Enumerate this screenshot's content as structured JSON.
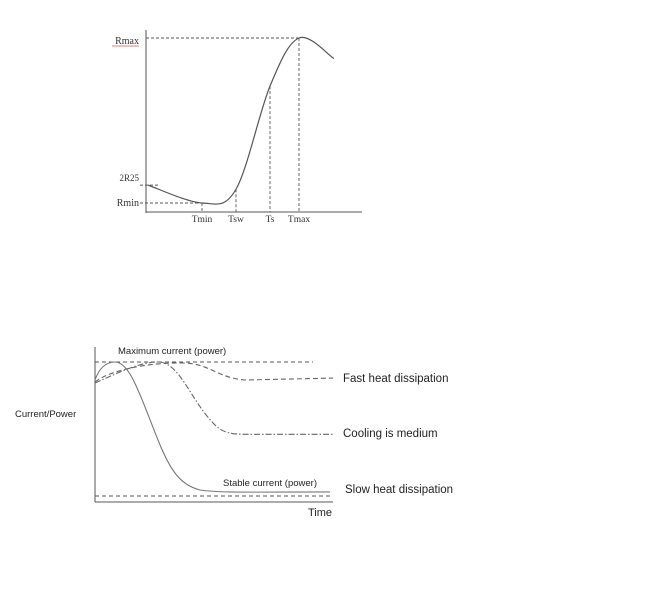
{
  "chart_data": [
    {
      "type": "line",
      "title": "",
      "xlabel": "",
      "ylabel": "",
      "x_ticks": [
        "Tmin",
        "Tsw",
        "Ts",
        "Tmax"
      ],
      "y_ticks": [
        "Rmax",
        "2R25",
        "Rmin"
      ],
      "series": [
        {
          "points": [
            {
              "t": "start",
              "r": 2.3
            },
            {
              "t": "Tmin",
              "r": 1.0
            },
            {
              "t": "Tsw",
              "r": 2.0
            },
            {
              "t": "Ts",
              "r": 9.5
            },
            {
              "t": "Tmax",
              "r": 13.0
            },
            {
              "t": "end",
              "r": 11.5
            }
          ]
        }
      ],
      "grid": false
    },
    {
      "type": "line",
      "title": "",
      "xlabel": "Time",
      "ylabel": "Current/Power",
      "reference_lines": [
        {
          "label": "Maximum current (power)",
          "level": 1.0
        },
        {
          "label": "Stable current (power)",
          "level": 0.0
        }
      ],
      "series": [
        {
          "name": "Fast heat dissipation",
          "style": "dashed",
          "final_level": 0.88
        },
        {
          "name": "Cooling is medium",
          "style": "dash-dot",
          "final_level": 0.46
        },
        {
          "name": "Slow heat dissipation",
          "style": "solid",
          "final_level": 0.03
        }
      ],
      "grid": false
    }
  ]
}
